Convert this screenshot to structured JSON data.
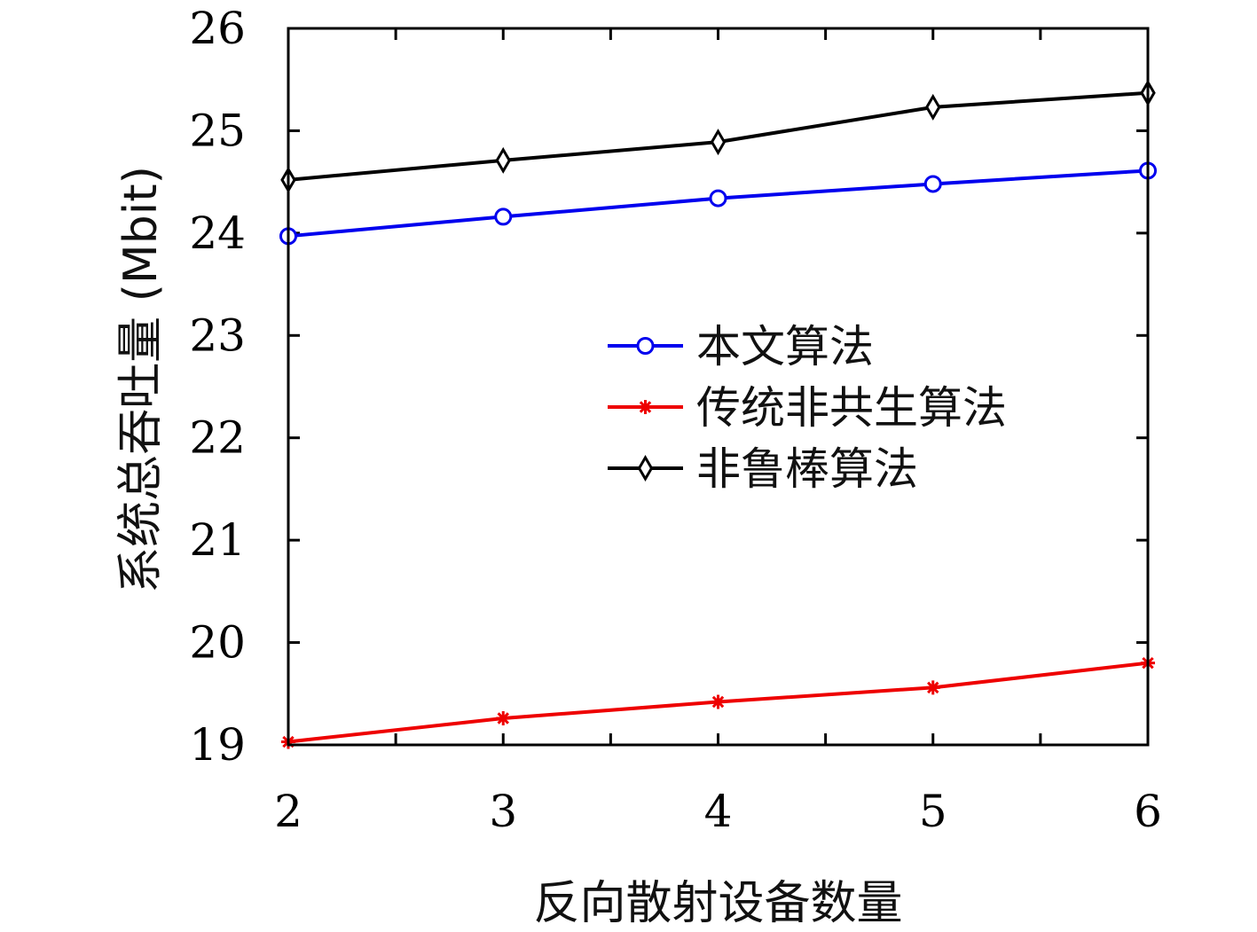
{
  "chart_data": {
    "type": "line",
    "xlabel": "反向散射设备数量",
    "ylabel": "系统总吞吐量 (Mbit)",
    "x": [
      2,
      3,
      4,
      5,
      6
    ],
    "xlim": [
      2,
      6
    ],
    "ylim": [
      19,
      26
    ],
    "xticks": [
      "2",
      "3",
      "4",
      "5",
      "6"
    ],
    "yticks": [
      "19",
      "20",
      "21",
      "22",
      "23",
      "24",
      "25",
      "26"
    ],
    "grid": false,
    "legend_position": "center-right",
    "series": [
      {
        "name": "本文算法",
        "color": "#0000ee",
        "marker": "circle",
        "values": [
          23.97,
          24.16,
          24.34,
          24.48,
          24.61
        ]
      },
      {
        "name": "传统非共生算法",
        "color": "#ee0000",
        "marker": "asterisk",
        "values": [
          19.03,
          19.26,
          19.42,
          19.56,
          19.8
        ]
      },
      {
        "name": "非鲁棒算法",
        "color": "#000000",
        "marker": "diamond",
        "values": [
          24.52,
          24.71,
          24.89,
          25.23,
          25.37
        ]
      }
    ]
  }
}
